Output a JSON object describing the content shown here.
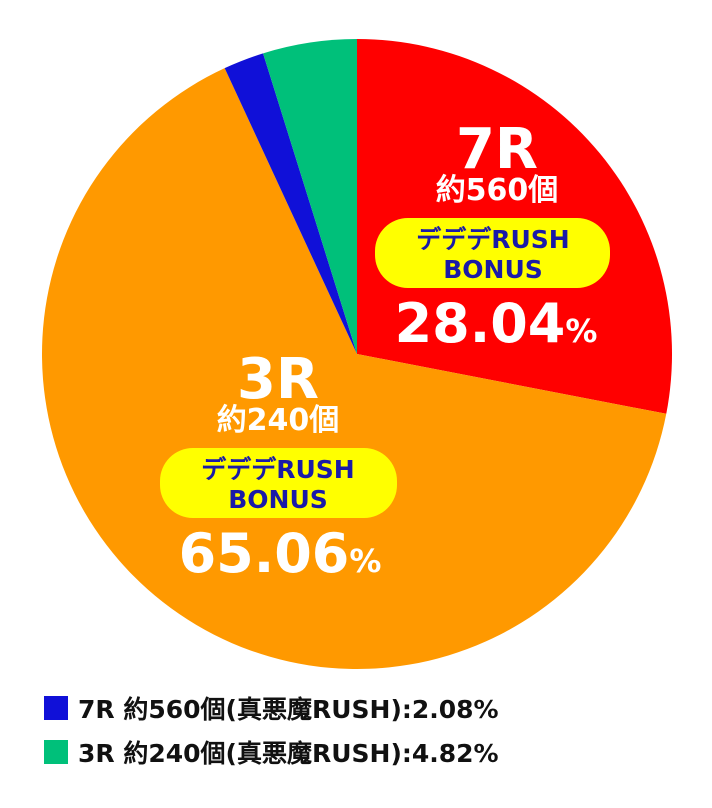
{
  "chart_data": {
    "type": "pie",
    "slices": [
      {
        "key": "red",
        "rounds": "7R",
        "count": "約560個",
        "badge": [
          "デデデRUSH",
          "BONUS"
        ],
        "value": 28.04,
        "value_label": "28.04",
        "unit": "%",
        "color": "#ff0000"
      },
      {
        "key": "orange",
        "rounds": "3R",
        "count": "約240個",
        "badge": [
          "デデデRUSH",
          "BONUS"
        ],
        "value": 65.06,
        "value_label": "65.06",
        "unit": "%",
        "color": "#ff9900"
      },
      {
        "key": "blue",
        "value": 2.08,
        "color": "#1010d8"
      },
      {
        "key": "green",
        "value": 4.82,
        "color": "#00c07a"
      }
    ],
    "start": "12 o'clock",
    "direction": "clockwise",
    "legend_placement": "bottom-left"
  },
  "legend": [
    {
      "text": "7R 約560個(真悪魔RUSH):2.08%",
      "color": "#1010d8"
    },
    {
      "text": "3R 約240個(真悪魔RUSH):4.82%",
      "color": "#00c07a"
    }
  ],
  "colors": {
    "badge_fill": "#ffff00",
    "badge_text": "#1a1aa8",
    "label_text": "#ffffff"
  }
}
